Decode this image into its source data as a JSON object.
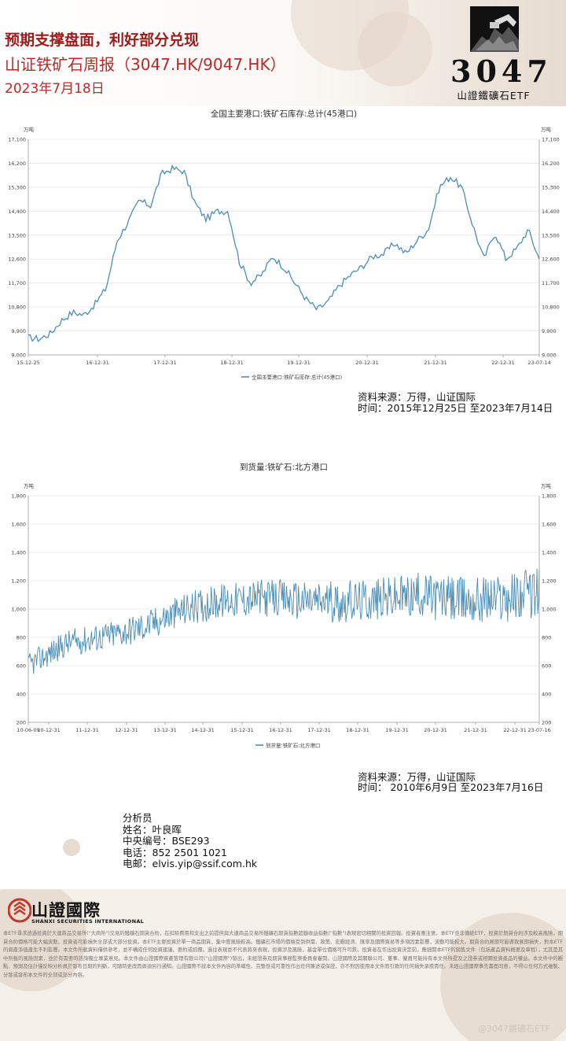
{
  "header": {
    "title": "预期支撑盘面，利好部分兑现",
    "subtitle": "山证铁矿石周报（3047.HK/9047.HK）",
    "date": "2023年7月18日"
  },
  "logo": {
    "code": "3047",
    "name": "山證鐵礦石ETF"
  },
  "charts": [
    {
      "source_line1": "资料来源：万得，山证国际",
      "source_line2": "时间：2015年12月25日 至2023年7月14日"
    },
    {
      "source_line1": "资料来源：万得，山证国际",
      "source_line2": "时间： 2010年6月9日 至2023年7月16日"
    }
  ],
  "chart_data": [
    {
      "type": "line",
      "title": "全国主要港口:铁矿石库存:总计(45港口)",
      "unit_label": "万吨",
      "ylim": [
        9000,
        17100
      ],
      "yticks": [
        "9,000",
        "9,900",
        "10,800",
        "11,700",
        "12,600",
        "13,500",
        "14,400",
        "15,300",
        "16,200",
        "17,100"
      ],
      "xticks": [
        "15-12-25",
        "16-12-31",
        "17-12-31",
        "18-12-31",
        "19-12-31",
        "20-12-31",
        "21-12-31",
        "22-12-31",
        "23-07-14"
      ],
      "legend": "全国主要港口:铁矿石库存:总计(45港口)",
      "series": [
        {
          "name": "全国主要港口:铁矿石库存:总计(45港口)",
          "x": [
            "2015-12",
            "2016-02",
            "2016-04",
            "2016-06",
            "2016-08",
            "2016-10",
            "2016-12",
            "2017-02",
            "2017-04",
            "2017-06",
            "2017-08",
            "2017-10",
            "2017-12",
            "2018-02",
            "2018-04",
            "2018-06",
            "2018-08",
            "2018-10",
            "2018-12",
            "2019-02",
            "2019-04",
            "2019-06",
            "2019-08",
            "2019-10",
            "2019-12",
            "2020-02",
            "2020-04",
            "2020-06",
            "2020-08",
            "2020-10",
            "2020-12",
            "2021-02",
            "2021-04",
            "2021-06",
            "2021-08",
            "2021-10",
            "2021-12",
            "2022-02",
            "2022-04",
            "2022-06",
            "2022-08",
            "2022-10",
            "2022-12",
            "2023-02",
            "2023-04",
            "2023-06",
            "2023-07"
          ],
          "values": [
            9650,
            9600,
            9800,
            10300,
            10600,
            10500,
            10900,
            11500,
            13300,
            14000,
            14800,
            14600,
            15800,
            16000,
            15900,
            14700,
            14100,
            14400,
            14400,
            12500,
            11700,
            12000,
            12700,
            12300,
            11700,
            11100,
            10700,
            11000,
            11600,
            12000,
            12300,
            12700,
            12800,
            13200,
            12800,
            13300,
            13700,
            15300,
            15700,
            15300,
            13900,
            12600,
            13600,
            12600,
            13000,
            13700,
            12600
          ]
        }
      ]
    },
    {
      "type": "line",
      "title": "到货量:铁矿石:北方港口",
      "unit_label": "万吨",
      "ylim": [
        200,
        1800
      ],
      "yticks": [
        "200",
        "400",
        "600",
        "800",
        "1,000",
        "1,200",
        "1,400",
        "1,600",
        "1,800"
      ],
      "xticks": [
        "10-06-09",
        "10-12-31",
        "11-12-31",
        "12-12-31",
        "13-12-31",
        "14-12-31",
        "15-12-31",
        "16-12-31",
        "17-12-31",
        "18-12-31",
        "19-12-31",
        "20-12-31",
        "21-12-31",
        "22-12-31",
        "23-07-16"
      ],
      "legend": "到货量:铁矿石:北方港口",
      "series": [
        {
          "name": "到货量:铁矿石:北方港口",
          "x": [
            "2010",
            "2011",
            "2012",
            "2013",
            "2014",
            "2015",
            "2016",
            "2017",
            "2018",
            "2019",
            "2020",
            "2021",
            "2022",
            "2023"
          ],
          "values": [
            600,
            760,
            810,
            880,
            1000,
            1060,
            1080,
            1060,
            1050,
            1070,
            1100,
            1060,
            1080,
            1120
          ]
        }
      ]
    }
  ],
  "analyst": {
    "heading": "分析员",
    "name": "姓名：叶良晖",
    "id": "中央编号：BSE293",
    "phone": "电话：852 2501 1021",
    "email": "电邮：elvis.yip@ssif.com.hk"
  },
  "footer": {
    "brand_cn": "山證國際",
    "brand_en": "SHANXI SECURITIES INTERNATIONAL",
    "disclaimer": "本ETF尋求透過投資於大連商品交易所(\"大商所\")交易的鐵礦石期貨合約，在扣除費用和支出之前提供與大連商品交易所鐵礦石期貨指數超額收益指數(\"指數\")表現密切相關的投資回報。投資者應注意，本ETF並非傳統ETF，投資於期貨合約涉及較高風險，期貨合約價格可能大幅波動，投資者可能損失全部或大部分投資。本ETF主要投資於單一商品期貨，集中度風險較高。鐵礦石市場的價格受到供需、政策、宏觀經濟、匯率及國際貿易等多項因素影響，波動可能較大。期貨合約展期可能導致展期損失，對本ETF的資產淨值產生不利影響。本文件所載資料僅供參考，並不構成任何投資建議、要約或招攬。過往表現並不代表將來表現，投資涉及風險，基金單位價格可升可跌。投資者在作出投資決定前，應細閱本ETF的銷售文件（包括產品資料概要及章程），尤其是其中所載的風險因素，並於有需要時諮詢獨立專業意見。本文件由山證國際資產管理有限公司(\"山證國際\")發出，未經證券及期貨事務監察委員會審閱。山證國際及其關聯公司、董事、僱員可能持有本文件所提及之證券或相關投資產品的權益。本文件中的觀點、預測及估計僅反映分析員於發布日期的判斷，可隨時更改而毋須另行通知。山證國際不就本文件內容的準確性、完整性或可靠性作出任何陳述或保證，亦不對因使用本文件而引致的任何損失承擔責任。未經山證國際事先書面同意，不得以任何方式複製、分發或發布本文件的全部或部分內容。",
    "watermark": "@3047鐵礦石ETF"
  }
}
